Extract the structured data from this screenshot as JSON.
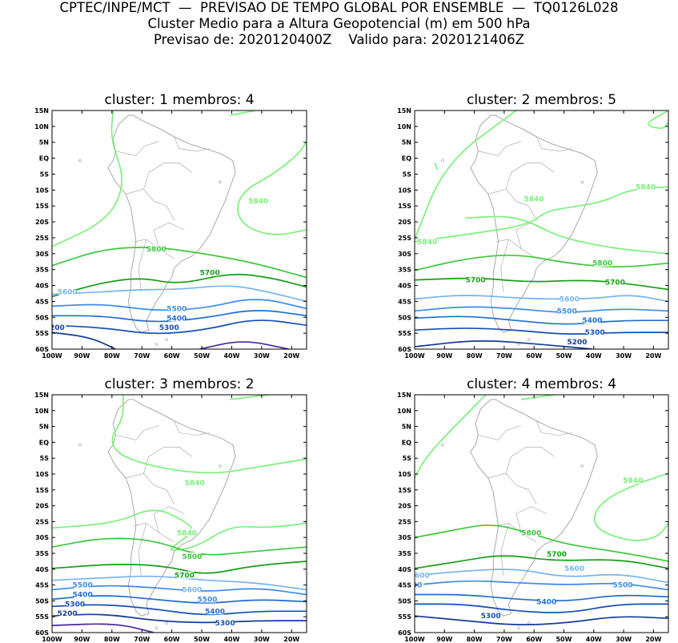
{
  "header": {
    "line1": "CPTEC/INPE/MCT  —  PREVISAO DE TEMPO GLOBAL POR ENSEMBLE  —  TQ0126L028",
    "line2": "Cluster Medio para a Altura Geopotencial (m) em 500 hPa",
    "line3": "Previsao de: 2020120400Z    Valido para: 2020121406Z"
  },
  "axes": {
    "lat_labels": [
      "15N",
      "10N",
      "5N",
      "EQ",
      "5S",
      "10S",
      "15S",
      "20S",
      "25S",
      "30S",
      "35S",
      "40S",
      "45S",
      "50S",
      "55S",
      "60S"
    ],
    "lon_labels": [
      "100W",
      "90W",
      "80W",
      "70W",
      "60W",
      "50W",
      "40W",
      "30W",
      "20W"
    ]
  },
  "colors": {
    "c5840": "#7cf07c",
    "c5800": "#3cc83c",
    "c5700": "#16a016",
    "c5600": "#78b4f0",
    "c5500": "#3c8ce6",
    "c5400": "#1e6ed2",
    "c5300": "#1450b4",
    "c5200": "#143c96",
    "c5100": "#4b28a0",
    "coast": "#a0a0a0"
  },
  "panels": [
    {
      "title": "cluster:  1    membros:  4",
      "labels": [
        "5840",
        "5800",
        "5700",
        "5600",
        "5500",
        "5400",
        "5300",
        "200"
      ]
    },
    {
      "title": "cluster:  2    membros:  5",
      "labels": [
        "5840",
        "5840",
        "5840",
        "5800",
        "5700",
        "5700",
        "5600",
        "5500",
        "5400",
        "5300",
        "5200"
      ]
    },
    {
      "title": "cluster:  3    membros:  2",
      "labels": [
        "5840",
        "5840",
        "5800",
        "5700",
        "5600",
        "5500",
        "5500",
        "5400",
        "5400",
        "5300",
        "5300",
        "5200"
      ]
    },
    {
      "title": "cluster:  4    membros:  4",
      "labels": [
        "5840",
        "5800",
        "5700",
        "5600",
        "5600",
        "500",
        "5500",
        "5400",
        "5300"
      ]
    }
  ]
}
